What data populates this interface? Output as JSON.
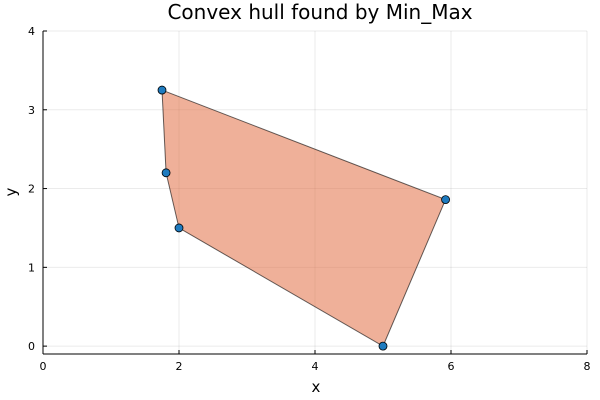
{
  "chart_data": {
    "type": "scatter",
    "title": "Convex hull found by Min_Max",
    "xlabel": "x",
    "ylabel": "y",
    "xlim": [
      0,
      8
    ],
    "ylim": [
      -0.1,
      4
    ],
    "xticks": [
      0,
      2,
      4,
      6,
      8
    ],
    "yticks": [
      0,
      1,
      2,
      3,
      4
    ],
    "grid": true,
    "legend": "none",
    "hull_polygon": [
      {
        "x": 1.75,
        "y": 3.25
      },
      {
        "x": 5.92,
        "y": 1.86
      },
      {
        "x": 5.0,
        "y": 0.0
      },
      {
        "x": 2.0,
        "y": 1.5
      },
      {
        "x": 1.81,
        "y": 2.2
      }
    ],
    "points": [
      {
        "x": 1.75,
        "y": 3.25
      },
      {
        "x": 1.81,
        "y": 2.2
      },
      {
        "x": 2.0,
        "y": 1.5
      },
      {
        "x": 5.0,
        "y": 0.0
      },
      {
        "x": 5.92,
        "y": 1.86
      }
    ],
    "colors": {
      "hull_fill": "#e26f46",
      "hull_stroke": "#000000",
      "point_fill": "#1f7bbf"
    }
  }
}
